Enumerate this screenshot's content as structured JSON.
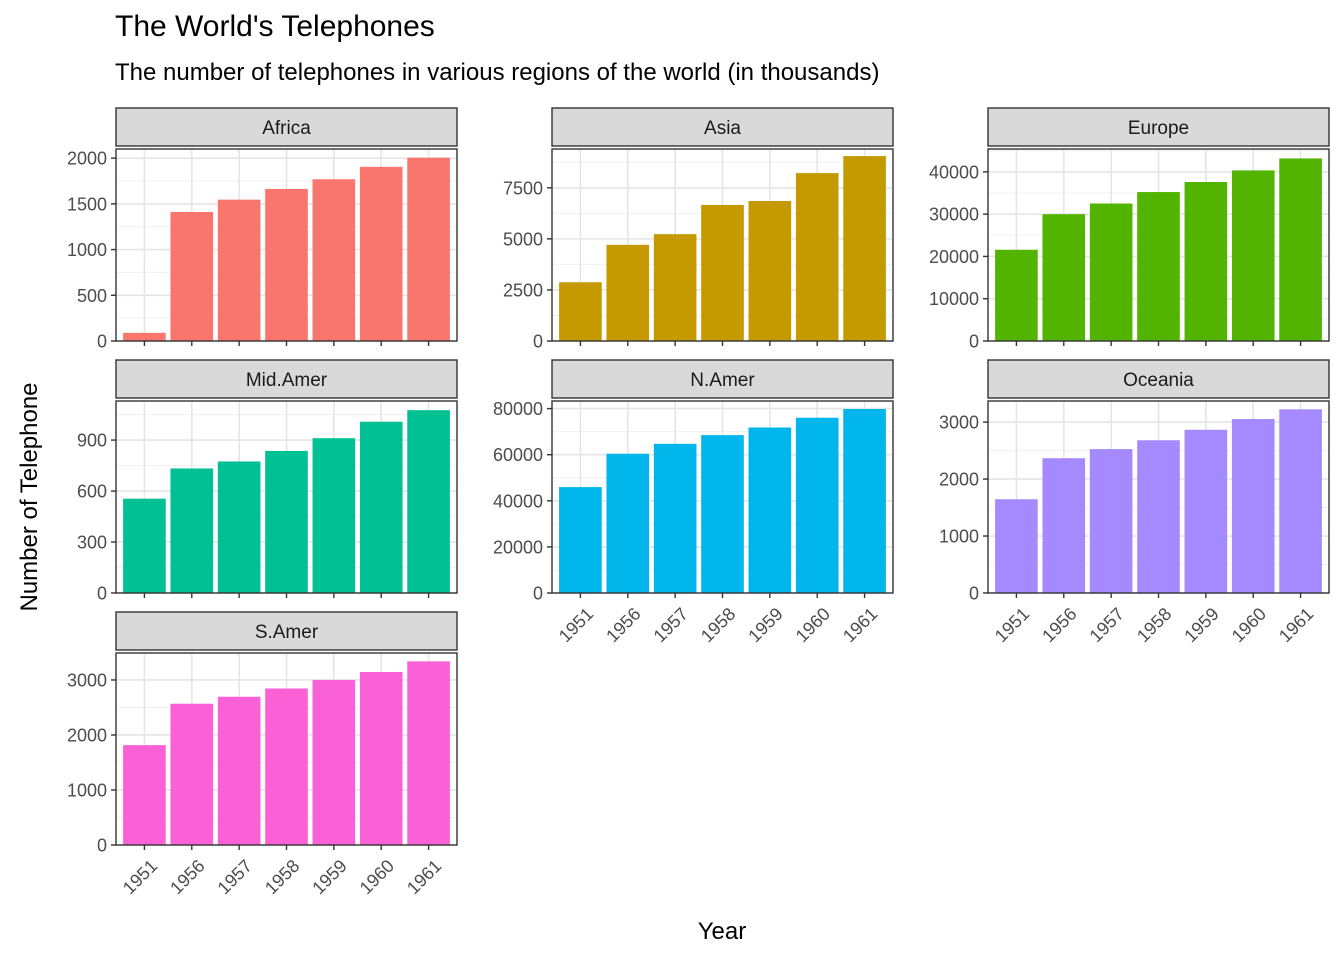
{
  "chart_data": {
    "type": "bar",
    "title": "The World's Telephones",
    "subtitle": "The number of telephones in various regions of the world (in thousands)",
    "xlabel": "Year",
    "ylabel": "Number of Telephone",
    "categories": [
      "1951",
      "1956",
      "1957",
      "1958",
      "1959",
      "1960",
      "1961"
    ],
    "grid": true,
    "legend": "none",
    "facets": [
      {
        "name": "Africa",
        "color": "#F8766D",
        "ylim": [
          0,
          2100
        ],
        "yticks": [
          0,
          500,
          1000,
          1500,
          2000
        ],
        "values": [
          89,
          1411,
          1546,
          1663,
          1769,
          1905,
          2005
        ]
      },
      {
        "name": "Asia",
        "color": "#C49A00",
        "ylim": [
          0,
          9400
        ],
        "yticks": [
          0,
          2500,
          5000,
          7500
        ],
        "values": [
          2876,
          4708,
          5230,
          6662,
          6856,
          8220,
          9053
        ]
      },
      {
        "name": "Europe",
        "color": "#53B400",
        "ylim": [
          0,
          45400
        ],
        "yticks": [
          0,
          10000,
          20000,
          30000,
          40000
        ],
        "values": [
          21574,
          29990,
          32510,
          35218,
          37598,
          40341,
          43173
        ]
      },
      {
        "name": "Mid.Amer",
        "color": "#00C094",
        "ylim": [
          0,
          1130
        ],
        "yticks": [
          0,
          300,
          600,
          900
        ],
        "values": [
          555,
          733,
          774,
          836,
          911,
          1008,
          1076
        ]
      },
      {
        "name": "N.Amer",
        "color": "#00B6EB",
        "ylim": [
          0,
          83300
        ],
        "yticks": [
          0,
          20000,
          40000,
          60000,
          80000
        ],
        "values": [
          45939,
          60423,
          64721,
          68484,
          71799,
          76036,
          79831
        ]
      },
      {
        "name": "Oceania",
        "color": "#A58AFF",
        "ylim": [
          0,
          3370
        ],
        "yticks": [
          0,
          1000,
          2000,
          3000
        ],
        "values": [
          1646,
          2366,
          2526,
          2681,
          2865,
          3054,
          3224
        ]
      },
      {
        "name": "S.Amer",
        "color": "#FB61D7",
        "ylim": [
          0,
          3490
        ],
        "yticks": [
          0,
          1000,
          2000,
          3000
        ],
        "values": [
          1815,
          2568,
          2695,
          2845,
          3000,
          3145,
          3338
        ]
      }
    ]
  }
}
